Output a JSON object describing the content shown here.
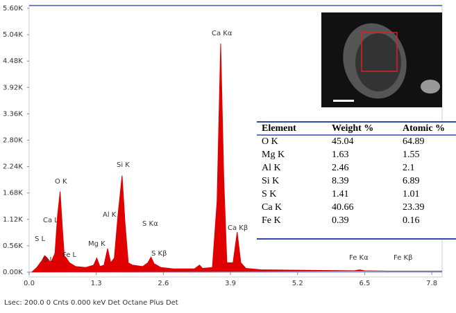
{
  "chart_data": {
    "type": "area",
    "x": [
      0.05,
      0.15,
      0.25,
      0.3,
      0.35,
      0.42,
      0.5,
      0.55,
      0.6,
      0.64,
      0.68,
      0.72,
      0.78,
      0.9,
      1.1,
      1.25,
      1.31,
      1.37,
      1.45,
      1.52,
      1.58,
      1.65,
      1.72,
      1.8,
      1.86,
      1.92,
      2.0,
      2.2,
      2.3,
      2.36,
      2.42,
      2.47,
      2.55,
      2.8,
      3.2,
      3.3,
      3.36,
      3.55,
      3.64,
      3.71,
      3.77,
      3.83,
      3.95,
      4.03,
      4.1,
      4.2,
      4.5,
      6.3,
      6.4,
      6.5,
      7.0,
      8.0
    ],
    "series": [
      {
        "color": "#e00000",
        "values": [
          0.0,
          0.1,
          0.25,
          0.35,
          0.3,
          0.2,
          0.4,
          1.2,
          1.71,
          1.0,
          0.35,
          0.3,
          0.2,
          0.12,
          0.1,
          0.15,
          0.3,
          0.12,
          0.15,
          0.5,
          0.2,
          0.3,
          1.2,
          2.05,
          1.0,
          0.2,
          0.15,
          0.12,
          0.2,
          0.32,
          0.18,
          0.15,
          0.1,
          0.07,
          0.07,
          0.15,
          0.08,
          0.1,
          1.5,
          4.85,
          2.0,
          0.2,
          0.2,
          0.85,
          0.2,
          0.08,
          0.05,
          0.03,
          0.05,
          0.03,
          0.02,
          0.02
        ]
      }
    ],
    "xlim": [
      0,
      8.0
    ],
    "xticks": [
      {
        "value": 0,
        "label": "0.0"
      },
      1.3,
      2.6,
      3.9,
      5.2,
      6.5,
      7.8
    ],
    "ylim": [
      0,
      5.6
    ],
    "yticks": [
      {
        "value": 0,
        "label": "0.00K"
      },
      {
        "value": 0.56,
        "label": "0.56K"
      },
      {
        "value": 1.12,
        "label": "1.12K"
      },
      {
        "value": 1.68,
        "label": "1.68K"
      },
      {
        "value": 2.24,
        "label": "2.24K"
      },
      {
        "value": 2.8,
        "label": "2.80K"
      },
      {
        "value": 3.36,
        "label": "3.36K"
      },
      {
        "value": 3.92,
        "label": "3.92K"
      },
      {
        "value": 4.48,
        "label": "4.48K"
      },
      {
        "value": 5.04,
        "label": "5.04K"
      },
      {
        "value": 5.6,
        "label": "5.60K"
      }
    ],
    "annotations": [
      "Ca Kα",
      "Si K",
      "O K",
      "Al K",
      "S Kα",
      "Ca L",
      "Ca Kβ",
      "Mg K",
      "S L",
      "Fe L",
      "S Kβ",
      "S L",
      "Fe Kα",
      "Fe Kβ"
    ],
    "footer": "Lsec: 200.0 0 Cnts 0.000 keV Det Octane Plus Det"
  },
  "table": {
    "header": [
      "Element",
      "Weight %",
      "Atomic %"
    ],
    "rows": [
      [
        "O K",
        "45.04",
        "64.89"
      ],
      [
        "Mg K",
        "1.63",
        "1.55"
      ],
      [
        "Al K",
        "2.46",
        "2.1"
      ],
      [
        "Si K",
        "8.39",
        "6.89"
      ],
      [
        "S K",
        "1.41",
        "1.01"
      ],
      [
        "Ca K",
        "40.66",
        "23.39"
      ],
      [
        "Fe K",
        "0.39",
        "0.16"
      ]
    ]
  }
}
